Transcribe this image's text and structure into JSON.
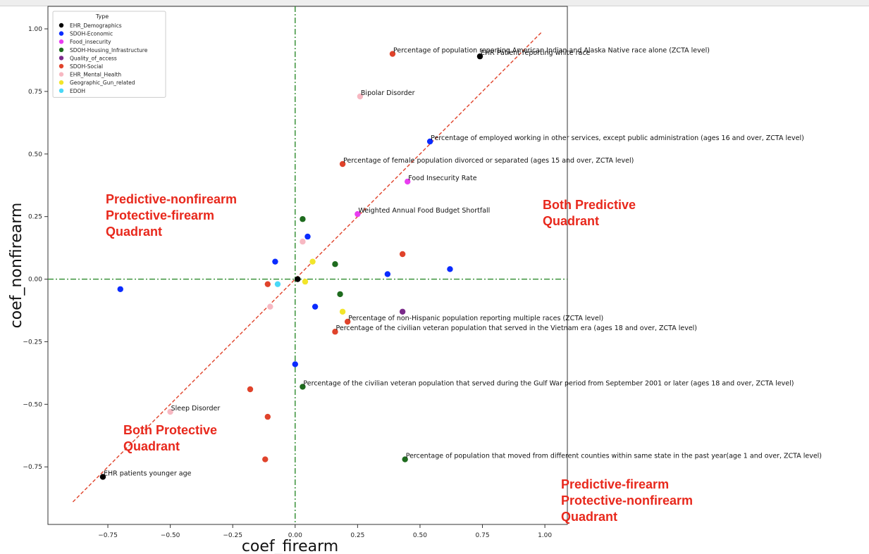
{
  "window": {
    "accent": "#eeeeee"
  },
  "chart_data": {
    "type": "scatter",
    "xlabel": "coef_firearm",
    "ylabel": "coef_nonfirearm",
    "xlim": [
      -0.99,
      1.09
    ],
    "ylim": [
      -0.98,
      1.09
    ],
    "x_ticks": [
      {
        "v": -0.75,
        "label": "−0.75"
      },
      {
        "v": -0.5,
        "label": "−0.50"
      },
      {
        "v": -0.25,
        "label": "−0.25"
      },
      {
        "v": 0.0,
        "label": "0.00"
      },
      {
        "v": 0.25,
        "label": "0.25"
      },
      {
        "v": 0.5,
        "label": "0.50"
      },
      {
        "v": 0.75,
        "label": "0.75"
      },
      {
        "v": 1.0,
        "label": "1.00"
      }
    ],
    "y_ticks": [
      {
        "v": 1.0,
        "label": "1.00"
      },
      {
        "v": 0.75,
        "label": "0.75"
      },
      {
        "v": 0.5,
        "label": "0.50"
      },
      {
        "v": 0.25,
        "label": "0.25"
      },
      {
        "v": 0.0,
        "label": "0.00"
      },
      {
        "v": -0.25,
        "label": "−0.25"
      },
      {
        "v": -0.5,
        "label": "−0.50"
      },
      {
        "v": -0.75,
        "label": "−0.75"
      }
    ],
    "grid": false,
    "legend": {
      "placement": "top-left",
      "title": "Type",
      "entries": [
        {
          "name": "EHR_Demographics",
          "color": "#000000"
        },
        {
          "name": "SDOH-Economic",
          "color": "#0a2bff"
        },
        {
          "name": "Food_insecurity",
          "color": "#e93df0"
        },
        {
          "name": "SDOH-Housing_Infrastructure",
          "color": "#1e6b1e"
        },
        {
          "name": "Quality_of_access",
          "color": "#7a2a8a"
        },
        {
          "name": "SDOH-Social",
          "color": "#e0432b"
        },
        {
          "name": "EHR_Mental_Health",
          "color": "#f7b8c2"
        },
        {
          "name": "Geographic_Gun_related",
          "color": "#f2e52a"
        },
        {
          "name": "EDOH",
          "color": "#4ad8f7"
        }
      ]
    },
    "reference_lines": [
      {
        "kind": "vertical",
        "value": 0.0,
        "style": "dash-dot",
        "color": "#2e8b2e"
      },
      {
        "kind": "horizontal",
        "value": 0.0,
        "style": "dash-dot",
        "color": "#2e8b2e"
      },
      {
        "kind": "diagonal",
        "from": [
          -0.89,
          -0.89
        ],
        "to": [
          0.99,
          0.99
        ],
        "style": "dashed",
        "color": "#e0432b"
      }
    ],
    "points": [
      {
        "x": 0.74,
        "y": 0.89,
        "type": "EHR_Demographics",
        "label": "EHR Patient reporting white race"
      },
      {
        "x": 0.39,
        "y": 0.9,
        "type": "SDOH-Social",
        "label": "Percentage of population reporting American Indian and Alaska Native race alone (ZCTA level)"
      },
      {
        "x": 0.26,
        "y": 0.73,
        "type": "EHR_Mental_Health",
        "label": "Bipolar Disorder"
      },
      {
        "x": 0.54,
        "y": 0.55,
        "type": "SDOH-Economic",
        "label": "Percentage of employed working in other services, except public administration (ages 16 and over, ZCTA level)"
      },
      {
        "x": 0.19,
        "y": 0.46,
        "type": "SDOH-Social",
        "label": "Percentage of female population divorced or separated (ages 15 and over, ZCTA level)"
      },
      {
        "x": 0.45,
        "y": 0.39,
        "type": "Food_insecurity",
        "label": "Food Insecurity Rate"
      },
      {
        "x": 0.25,
        "y": 0.26,
        "type": "Food_insecurity",
        "label": "Weighted Annual Food Budget Shortfall"
      },
      {
        "x": 0.03,
        "y": 0.24,
        "type": "SDOH-Housing_Infrastructure",
        "label": ""
      },
      {
        "x": 0.05,
        "y": 0.17,
        "type": "SDOH-Economic",
        "label": ""
      },
      {
        "x": 0.03,
        "y": 0.15,
        "type": "EHR_Mental_Health",
        "label": ""
      },
      {
        "x": -0.08,
        "y": 0.07,
        "type": "SDOH-Economic",
        "label": ""
      },
      {
        "x": 0.07,
        "y": 0.07,
        "type": "Geographic_Gun_related",
        "label": ""
      },
      {
        "x": 0.16,
        "y": 0.06,
        "type": "SDOH-Housing_Infrastructure",
        "label": ""
      },
      {
        "x": 0.43,
        "y": 0.1,
        "type": "SDOH-Social",
        "label": ""
      },
      {
        "x": 0.37,
        "y": 0.02,
        "type": "SDOH-Economic",
        "label": ""
      },
      {
        "x": 0.62,
        "y": 0.04,
        "type": "SDOH-Economic",
        "label": ""
      },
      {
        "x": 0.01,
        "y": 0.0,
        "type": "EHR_Demographics",
        "label": ""
      },
      {
        "x": 0.04,
        "y": -0.01,
        "type": "Geographic_Gun_related",
        "label": ""
      },
      {
        "x": -0.11,
        "y": -0.02,
        "type": "SDOH-Social",
        "label": ""
      },
      {
        "x": -0.07,
        "y": -0.02,
        "type": "EDOH",
        "label": ""
      },
      {
        "x": -0.7,
        "y": -0.04,
        "type": "SDOH-Economic",
        "label": ""
      },
      {
        "x": 0.18,
        "y": -0.06,
        "type": "SDOH-Housing_Infrastructure",
        "label": ""
      },
      {
        "x": 0.08,
        "y": -0.11,
        "type": "SDOH-Economic",
        "label": ""
      },
      {
        "x": -0.1,
        "y": -0.11,
        "type": "EHR_Mental_Health",
        "label": ""
      },
      {
        "x": 0.19,
        "y": -0.13,
        "type": "Geographic_Gun_related",
        "label": ""
      },
      {
        "x": 0.43,
        "y": -0.13,
        "type": "Quality_of_access",
        "label": ""
      },
      {
        "x": 0.21,
        "y": -0.17,
        "type": "SDOH-Social",
        "label": "Percentage of non-Hispanic population reporting multiple races (ZCTA level)"
      },
      {
        "x": 0.16,
        "y": -0.21,
        "type": "SDOH-Social",
        "label": "Percentage of the civilian veteran population that served in the Vietnam era (ages 18 and over, ZCTA level)"
      },
      {
        "x": 0.0,
        "y": -0.34,
        "type": "SDOH-Economic",
        "label": ""
      },
      {
        "x": 0.03,
        "y": -0.43,
        "type": "SDOH-Housing_Infrastructure",
        "label": "Percentage of the civilian veteran population that served during the Gulf War period from September 2001 or later (ages 18 and over, ZCTA level)"
      },
      {
        "x": -0.18,
        "y": -0.44,
        "type": "SDOH-Social",
        "label": ""
      },
      {
        "x": -0.5,
        "y": -0.53,
        "type": "EHR_Mental_Health",
        "label": "Sleep Disorder"
      },
      {
        "x": -0.11,
        "y": -0.55,
        "type": "SDOH-Social",
        "label": ""
      },
      {
        "x": -0.12,
        "y": -0.72,
        "type": "SDOH-Social",
        "label": ""
      },
      {
        "x": 0.44,
        "y": -0.72,
        "type": "SDOH-Housing_Infrastructure",
        "label": "Percentage of population that moved from different counties within same state in the past year(age 1 and over, ZCTA level)"
      },
      {
        "x": -0.77,
        "y": -0.79,
        "type": "EHR_Demographics",
        "label": "EHR patients younger age"
      }
    ],
    "annotations": [
      {
        "lines": [
          "Predictive-nonfirearm",
          "Protective-firearm",
          "Quadrant"
        ],
        "color": "#e8281c"
      },
      {
        "lines": [
          "Both Predictive",
          "Quadrant"
        ],
        "color": "#e8281c"
      },
      {
        "lines": [
          "Both Protective",
          "Quadrant"
        ],
        "color": "#e8281c"
      },
      {
        "lines": [
          "Predictive-firearm",
          "Protective-nonfirearm",
          "Quadrant"
        ],
        "color": "#e8281c"
      }
    ]
  }
}
